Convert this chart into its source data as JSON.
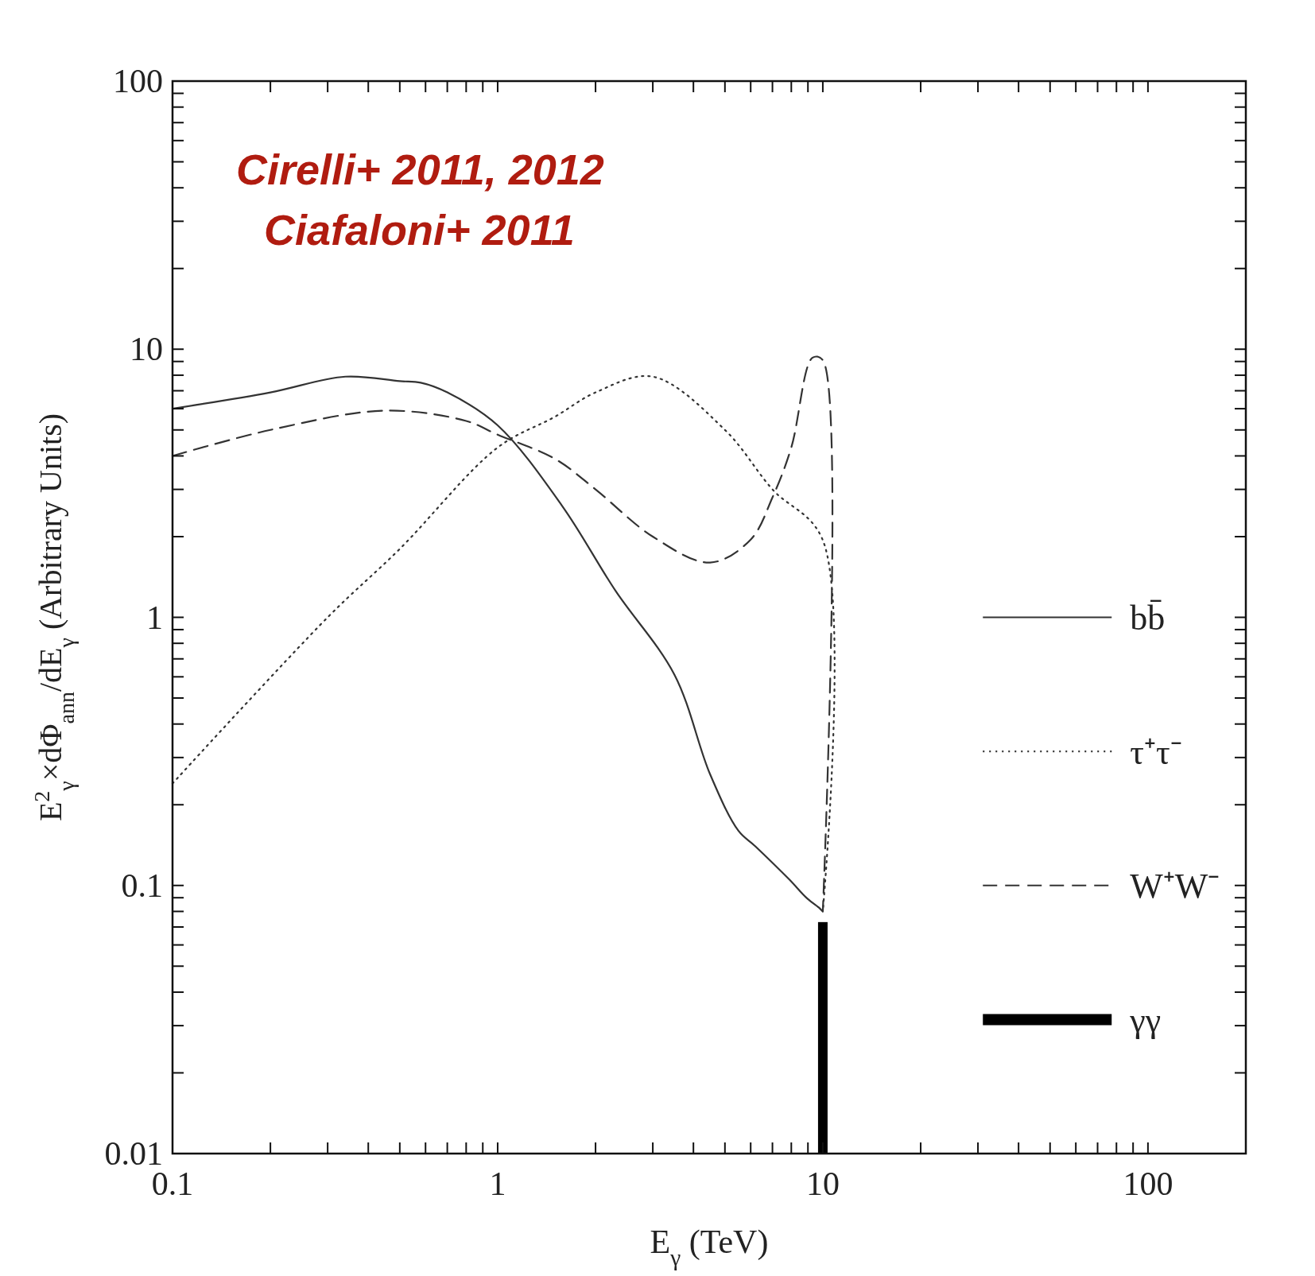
{
  "chart_data": {
    "type": "line",
    "log": "xy",
    "xlabel": "E$_{γ}$ (TeV)",
    "ylabel": "E$^{2}$$_{γ}$×dΦ$_{ann}$/dE$_{γ}$ (Arbitrary Units)",
    "annotations": [
      "Cirelli+ 2011, 2012",
      "Ciafaloni+ 2011"
    ],
    "xlim": [
      0.1,
      200
    ],
    "ylim": [
      0.01,
      100
    ],
    "xticks": [
      0.1,
      {
        "value": 0.2,
        "label": null
      },
      {
        "value": 0.3,
        "label": null
      },
      {
        "value": 0.4,
        "label": null
      },
      {
        "value": 0.5,
        "label": null
      },
      {
        "value": 0.6,
        "label": null
      },
      {
        "value": 0.7,
        "label": null
      },
      {
        "value": 0.8,
        "label": null
      },
      {
        "value": 0.9,
        "label": null
      },
      1,
      {
        "value": 2,
        "label": null
      },
      {
        "value": 3,
        "label": null
      },
      {
        "value": 4,
        "label": null
      },
      {
        "value": 5,
        "label": null
      },
      {
        "value": 6,
        "label": null
      },
      {
        "value": 7,
        "label": null
      },
      {
        "value": 8,
        "label": null
      },
      {
        "value": 9,
        "label": null
      },
      10,
      {
        "value": 20,
        "label": null
      },
      {
        "value": 30,
        "label": null
      },
      {
        "value": 40,
        "label": null
      },
      {
        "value": 50,
        "label": null
      },
      {
        "value": 60,
        "label": null
      },
      {
        "value": 70,
        "label": null
      },
      {
        "value": 80,
        "label": null
      },
      {
        "value": 90,
        "label": null
      },
      100,
      {
        "value": 200,
        "label": null
      }
    ],
    "yticks": [
      0.01,
      {
        "value": 0.02,
        "label": null
      },
      {
        "value": 0.03,
        "label": null
      },
      {
        "value": 0.04,
        "label": null
      },
      {
        "value": 0.05,
        "label": null
      },
      {
        "value": 0.06,
        "label": null
      },
      {
        "value": 0.07,
        "label": null
      },
      {
        "value": 0.08,
        "label": null
      },
      {
        "value": 0.09,
        "label": null
      },
      0.1,
      {
        "value": 0.2,
        "label": null
      },
      {
        "value": 0.3,
        "label": null
      },
      {
        "value": 0.4,
        "label": null
      },
      {
        "value": 0.5,
        "label": null
      },
      {
        "value": 0.6,
        "label": null
      },
      {
        "value": 0.7,
        "label": null
      },
      {
        "value": 0.8,
        "label": null
      },
      {
        "value": 0.9,
        "label": null
      },
      1,
      {
        "value": 2,
        "label": null
      },
      {
        "value": 3,
        "label": null
      },
      {
        "value": 4,
        "label": null
      },
      {
        "value": 5,
        "label": null
      },
      {
        "value": 6,
        "label": null
      },
      {
        "value": 7,
        "label": null
      },
      {
        "value": 8,
        "label": null
      },
      {
        "value": 9,
        "label": null
      },
      10,
      {
        "value": 20,
        "label": null
      },
      {
        "value": 30,
        "label": null
      },
      {
        "value": 40,
        "label": null
      },
      {
        "value": 50,
        "label": null
      },
      {
        "value": 60,
        "label": null
      },
      {
        "value": 70,
        "label": null
      },
      {
        "value": 80,
        "label": null
      },
      {
        "value": 90,
        "label": null
      },
      100
    ],
    "legend": "right",
    "grid": false,
    "series": [
      {
        "name": "bb̄",
        "color": "#333333",
        "line_style": "solid",
        "x": [
          0.1,
          0.2,
          0.34,
          0.5,
          0.58,
          0.7,
          1,
          1.58,
          2.3,
          3.5,
          4.5,
          5.5,
          6.2,
          7.9,
          8.9,
          9.8,
          10
        ],
        "values": [
          6.0,
          6.9,
          7.9,
          7.6,
          7.5,
          6.9,
          5.2,
          2.6,
          1.26,
          0.61,
          0.26,
          0.16,
          0.14,
          0.105,
          0.09,
          0.082,
          0.08
        ]
      },
      {
        "name": "τ⁺τ⁻",
        "color": "#333333",
        "line_style": "dotted",
        "x": [
          0.1,
          0.3,
          0.5,
          1,
          1.5,
          2,
          3,
          5,
          7,
          10,
          10
        ],
        "values": [
          0.24,
          1.0,
          1.8,
          4.3,
          5.6,
          6.9,
          7.9,
          5.0,
          3.0,
          1.94,
          0.08
        ]
      },
      {
        "name": "W⁺W⁻",
        "color": "#333333",
        "line_style": "dashed",
        "x": [
          0.1,
          0.2,
          0.45,
          0.8,
          1,
          1.5,
          2,
          3,
          4.5,
          6,
          7,
          8,
          9.3,
          10,
          10
        ],
        "values": [
          4.0,
          5.0,
          5.9,
          5.4,
          4.8,
          3.9,
          3.0,
          2.0,
          1.6,
          1.95,
          2.8,
          4.3,
          9.3,
          9.1,
          0.08
        ]
      },
      {
        "name": "γγ",
        "color": "#000000",
        "type": "bar",
        "x": [
          10
        ],
        "values": [
          0.073
        ]
      }
    ]
  }
}
